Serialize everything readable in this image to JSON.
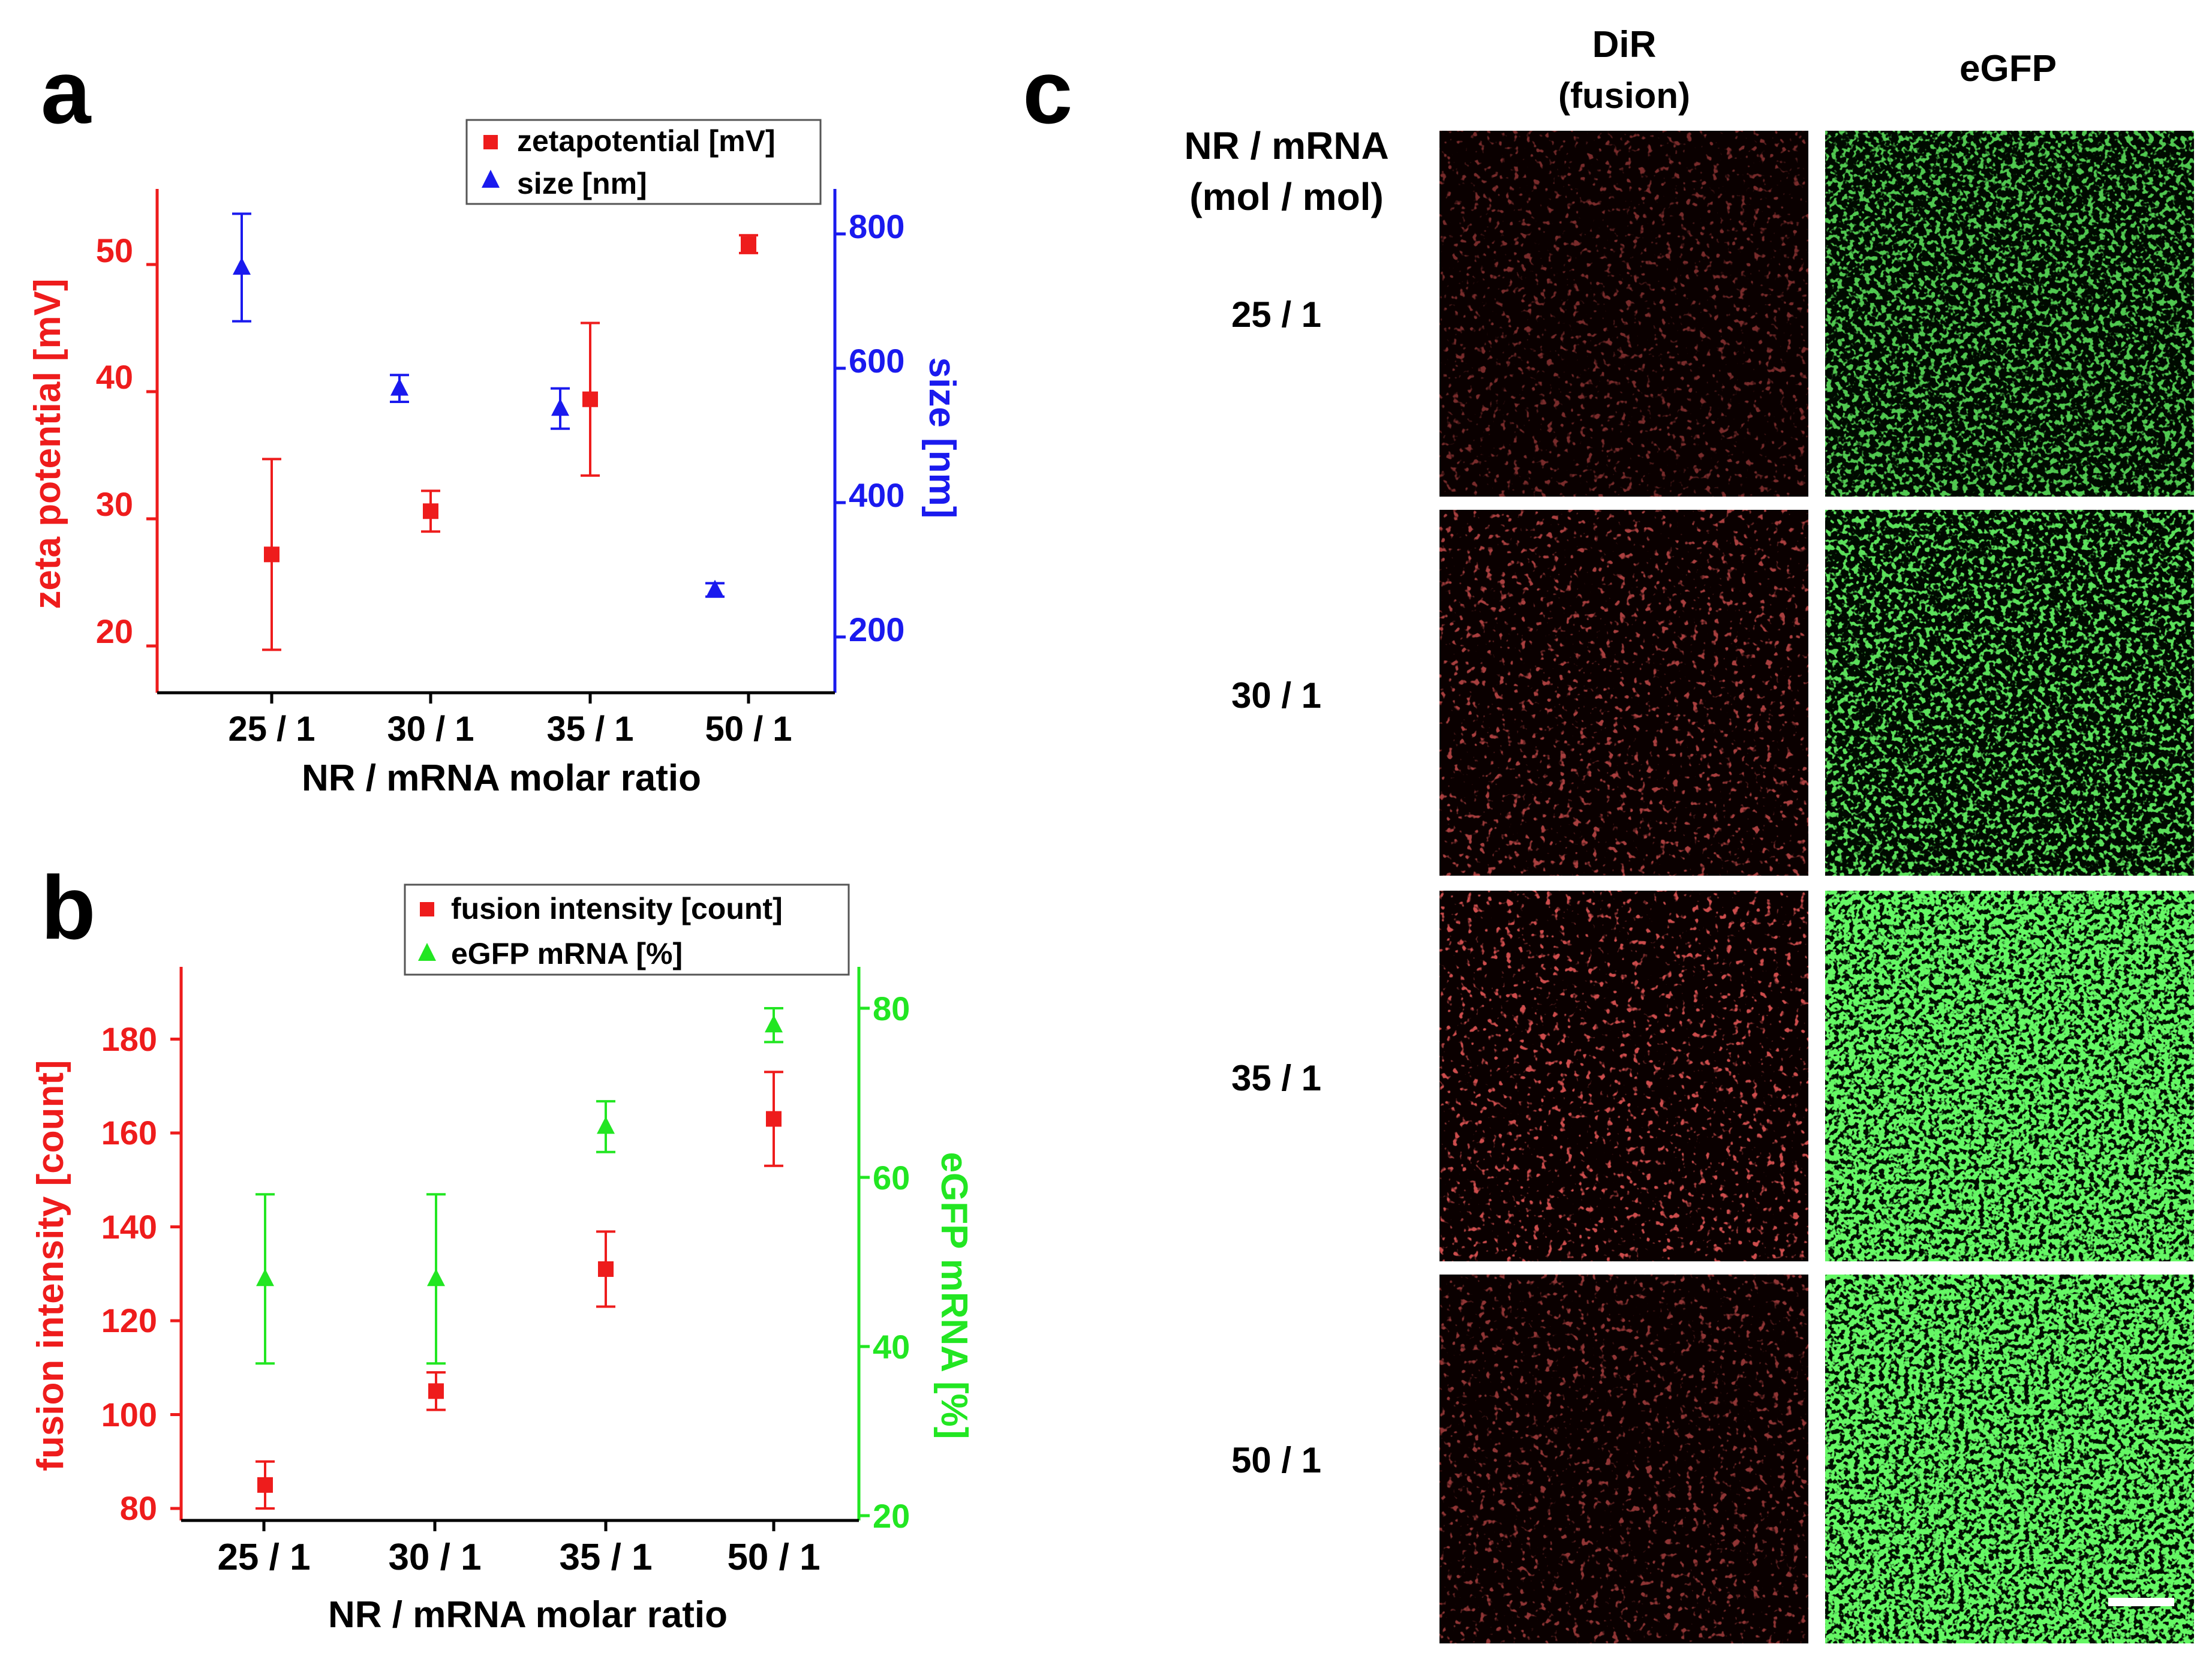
{
  "panels": {
    "a": {
      "label": "a",
      "legend": {
        "items": [
          "zetapotential [mV]",
          "size [nm]"
        ]
      },
      "left_axis": {
        "label": "zeta potential [mV]",
        "ticks": [
          "20",
          "30",
          "40",
          "50"
        ],
        "color": "#ee1c1c"
      },
      "right_axis": {
        "label": "size [nm]",
        "ticks": [
          "200",
          "400",
          "600",
          "800"
        ],
        "color": "#1a1aee"
      },
      "xlabel": "NR / mRNA molar ratio",
      "categories": [
        "25 / 1",
        "30 / 1",
        "35 / 1",
        "50 / 1"
      ]
    },
    "b": {
      "label": "b",
      "legend": {
        "items": [
          "fusion intensity [count]",
          "eGFP mRNA [%]"
        ]
      },
      "left_axis": {
        "label": "fusion intensity [count]",
        "ticks": [
          "80",
          "100",
          "120",
          "140",
          "160",
          "180"
        ],
        "color": "#ee1c1c"
      },
      "right_axis": {
        "label": "eGFP mRNA [%]",
        "ticks": [
          "20",
          "40",
          "60",
          "80"
        ],
        "color": "#22e622"
      },
      "xlabel": "NR / mRNA molar ratio",
      "categories": [
        "25 / 1",
        "30 / 1",
        "35 / 1",
        "50 / 1"
      ]
    },
    "c": {
      "label": "c",
      "col_headers": {
        "dir": "DiR",
        "dir_sub": "(fusion)",
        "egfp": "eGFP"
      },
      "row_header": {
        "line1": "NR / mRNA",
        "line2": "(mol / mol)"
      },
      "rows": [
        "25 / 1",
        "30 / 1",
        "35 / 1",
        "50 / 1"
      ],
      "dir_color": "#ff2020",
      "egfp_color": "#22ee22",
      "egfp_density": [
        0.55,
        0.6,
        1.0,
        1.0
      ]
    }
  },
  "chart_data": [
    {
      "type": "scatter",
      "panel": "a",
      "categories": [
        "25 / 1",
        "30 / 1",
        "35 / 1",
        "50 / 1"
      ],
      "xlabel": "NR / mRNA molar ratio",
      "series": [
        {
          "name": "zetapotential [mV]",
          "axis": "left",
          "marker": "square",
          "color": "#ee1c1c",
          "values": [
            27.2,
            30.6,
            39.4,
            51.6
          ],
          "errors": [
            7.5,
            1.6,
            6.0,
            0.7
          ]
        },
        {
          "name": "size [nm]",
          "axis": "right",
          "marker": "triangle",
          "color": "#1a1aee",
          "values": [
            750,
            570,
            540,
            270
          ],
          "errors": [
            80,
            20,
            30,
            10
          ]
        }
      ],
      "ylabel_left": "zeta potential [mV]",
      "ylim_left": [
        15,
        55
      ],
      "ylabel_right": "size [nm]",
      "ylim_right": [
        100,
        850
      ]
    },
    {
      "type": "scatter",
      "panel": "b",
      "categories": [
        "25 / 1",
        "30 / 1",
        "35 / 1",
        "50 / 1"
      ],
      "xlabel": "NR / mRNA molar ratio",
      "series": [
        {
          "name": "fusion intensity [count]",
          "axis": "left",
          "marker": "square",
          "color": "#ee1c1c",
          "values": [
            85,
            105,
            131,
            163
          ],
          "errors": [
            5,
            4,
            8,
            10
          ]
        },
        {
          "name": "eGFP mRNA [%]",
          "axis": "right",
          "marker": "triangle",
          "color": "#22e622",
          "values": [
            48,
            48,
            66,
            78
          ],
          "errors": [
            10,
            10,
            3,
            2
          ]
        }
      ],
      "ylabel_left": "fusion intensity [count]",
      "ylim_left": [
        78,
        195
      ],
      "ylabel_right": "eGFP mRNA [%]",
      "ylim_right": [
        20,
        85
      ]
    }
  ]
}
